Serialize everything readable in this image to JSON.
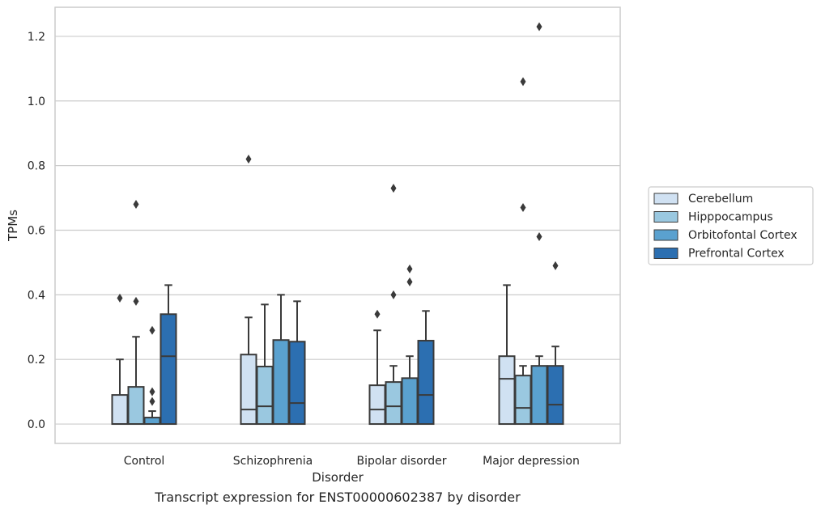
{
  "caption": "Transcript expression for ENST00000602387 by disorder",
  "colors": {
    "Cerebellum": "#d0e1f2",
    "Hipppocampus": "#9ac8e0",
    "Orbitofontal Cortex": "#5aa1cf",
    "Prefrontal Cortex": "#2c6fb1",
    "edge": "#3a3a3a",
    "grid": "#cccccc",
    "frame": "#cccccc"
  },
  "chart_data": {
    "type": "box",
    "xlabel": "Disorder",
    "ylabel": "TPMs",
    "ylim": [
      -0.06,
      1.29
    ],
    "yticks": [
      "0.0",
      "0.2",
      "0.4",
      "0.6",
      "0.8",
      "1.0",
      "1.2"
    ],
    "grid": "horizontal",
    "legend_position": "right",
    "categories": [
      "Control",
      "Schizophrenia",
      "Bipolar disorder",
      "Major depression"
    ],
    "series": [
      {
        "name": "Cerebellum",
        "boxes": [
          {
            "min": 0.0,
            "q1": 0.0,
            "median": 0.0,
            "q3": 0.09,
            "max": 0.2,
            "outliers": [
              0.39
            ]
          },
          {
            "min": 0.0,
            "q1": 0.0,
            "median": 0.045,
            "q3": 0.215,
            "max": 0.33,
            "outliers": [
              0.82
            ]
          },
          {
            "min": 0.0,
            "q1": 0.0,
            "median": 0.045,
            "q3": 0.12,
            "max": 0.29,
            "outliers": [
              0.34
            ]
          },
          {
            "min": 0.0,
            "q1": 0.0,
            "median": 0.14,
            "q3": 0.21,
            "max": 0.43,
            "outliers": []
          }
        ]
      },
      {
        "name": "Hipppocampus",
        "boxes": [
          {
            "min": 0.0,
            "q1": 0.0,
            "median": 0.0,
            "q3": 0.115,
            "max": 0.27,
            "outliers": [
              0.38,
              0.68
            ]
          },
          {
            "min": 0.0,
            "q1": 0.0,
            "median": 0.055,
            "q3": 0.178,
            "max": 0.37,
            "outliers": []
          },
          {
            "min": 0.0,
            "q1": 0.0,
            "median": 0.055,
            "q3": 0.13,
            "max": 0.18,
            "outliers": [
              0.4,
              0.73
            ]
          },
          {
            "min": 0.0,
            "q1": 0.0,
            "median": 0.05,
            "q3": 0.15,
            "max": 0.18,
            "outliers": [
              0.67,
              1.06
            ]
          }
        ]
      },
      {
        "name": "Orbitofontal Cortex",
        "boxes": [
          {
            "min": 0.0,
            "q1": 0.0,
            "median": 0.0,
            "q3": 0.02,
            "max": 0.04,
            "outliers": [
              0.07,
              0.1,
              0.29
            ]
          },
          {
            "min": 0.0,
            "q1": 0.0,
            "median": 0.0,
            "q3": 0.26,
            "max": 0.4,
            "outliers": []
          },
          {
            "min": 0.0,
            "q1": 0.0,
            "median": 0.0,
            "q3": 0.142,
            "max": 0.21,
            "outliers": [
              0.44,
              0.48
            ]
          },
          {
            "min": 0.0,
            "q1": 0.0,
            "median": 0.0,
            "q3": 0.18,
            "max": 0.21,
            "outliers": [
              0.58,
              1.23
            ]
          }
        ]
      },
      {
        "name": "Prefrontal Cortex",
        "boxes": [
          {
            "min": 0.0,
            "q1": 0.0,
            "median": 0.21,
            "q3": 0.34,
            "max": 0.43,
            "outliers": []
          },
          {
            "min": 0.0,
            "q1": 0.0,
            "median": 0.065,
            "q3": 0.255,
            "max": 0.38,
            "outliers": []
          },
          {
            "min": 0.0,
            "q1": 0.0,
            "median": 0.09,
            "q3": 0.258,
            "max": 0.35,
            "outliers": []
          },
          {
            "min": 0.0,
            "q1": 0.0,
            "median": 0.06,
            "q3": 0.18,
            "max": 0.24,
            "outliers": [
              0.49
            ]
          }
        ]
      }
    ]
  }
}
